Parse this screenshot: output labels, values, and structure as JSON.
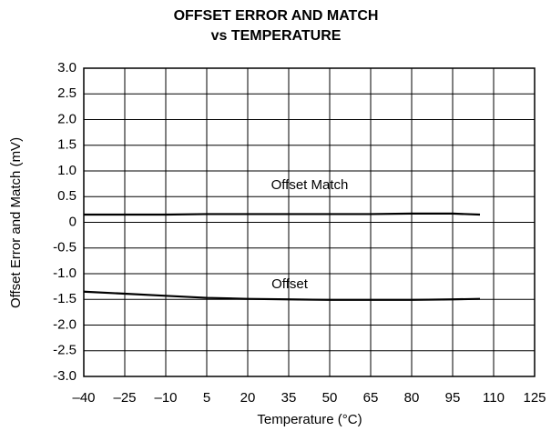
{
  "chart_data": {
    "type": "line",
    "title": [
      "OFFSET ERROR AND MATCH",
      "vs TEMPERATURE"
    ],
    "xlabel": "Temperature (°C)",
    "ylabel": "Offset Error and Match (mV)",
    "x": [
      -40,
      -25,
      -10,
      5,
      20,
      35,
      50,
      65,
      80,
      95,
      105
    ],
    "series": [
      {
        "name": "Offset Match",
        "color": "#000000",
        "values": [
          0.15,
          0.15,
          0.15,
          0.16,
          0.16,
          0.16,
          0.16,
          0.16,
          0.17,
          0.17,
          0.15
        ]
      },
      {
        "name": "Offset",
        "color": "#000000",
        "values": [
          -1.35,
          -1.39,
          -1.43,
          -1.47,
          -1.49,
          -1.5,
          -1.51,
          -1.51,
          -1.51,
          -1.5,
          -1.49
        ]
      }
    ],
    "xlim": [
      -40,
      125
    ],
    "xticks": [
      {
        "value": -40,
        "label": "–40"
      },
      {
        "value": -25,
        "label": "–25"
      },
      {
        "value": -10,
        "label": "–10"
      },
      5,
      20,
      35,
      50,
      65,
      80,
      95,
      110,
      125
    ],
    "ylim": [
      -3,
      3
    ],
    "yticks": [
      {
        "value": -3,
        "label": "-3.0"
      },
      {
        "value": -2.5,
        "label": "-2.5"
      },
      {
        "value": -2,
        "label": "-2.0"
      },
      -1.5,
      {
        "value": -1,
        "label": "-1.0"
      },
      -0.5,
      0,
      0.5,
      {
        "value": 1,
        "label": "1.0"
      },
      1.5,
      {
        "value": 2,
        "label": "2.0"
      },
      2.5,
      {
        "value": 3,
        "label": "3.0"
      }
    ],
    "grid": true
  }
}
